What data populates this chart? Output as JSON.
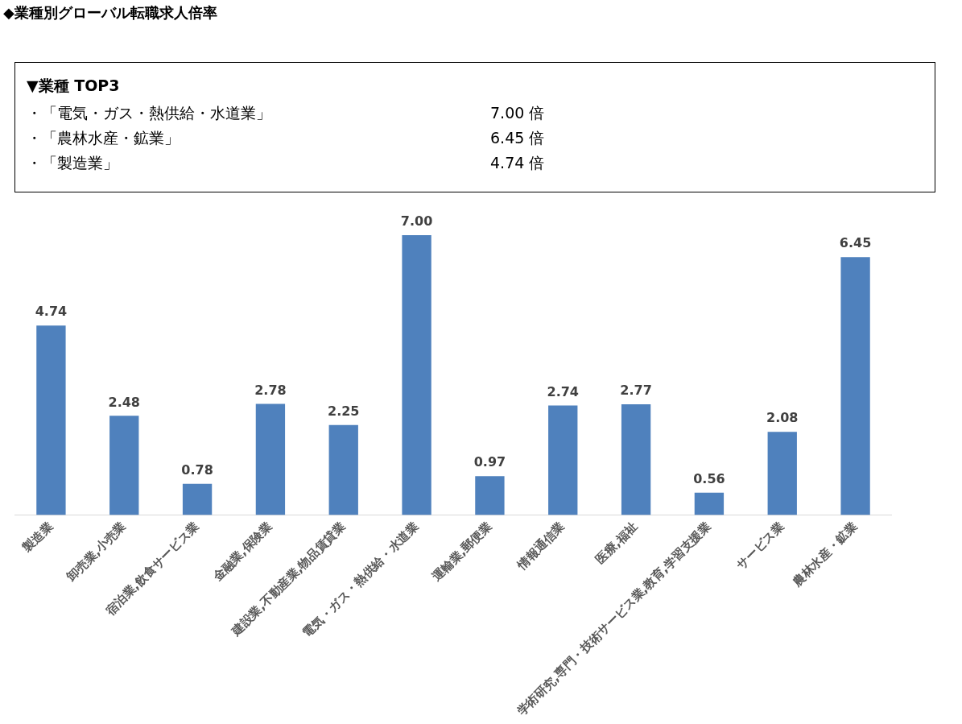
{
  "chart_data": {
    "type": "bar",
    "title": "◆業種別グローバル転職求人倍率",
    "annotations": [
      "▼業種 TOP3",
      "・「電気・ガス・熱供給・水道業」\t7.00 倍",
      "・「農林水産・鉱業」\t6.45 倍",
      "・「製造業」\t4.74 倍"
    ],
    "categories": [
      "製造業",
      "卸売業,小売業",
      "宿泊業,飲食サービス業",
      "金融業,保険業",
      "建設業,不動産業,物品賃貸業",
      "電気・ガス・熱供給・水道業",
      "運輸業,郵便業",
      "情報通信業",
      "医療,福祉",
      "学術研究,専門・技術サービス業,教育,学習支援業",
      "サービス業",
      "農林水産・鉱業"
    ],
    "values": [
      4.74,
      2.48,
      0.78,
      2.78,
      2.25,
      7.0,
      0.97,
      2.74,
      2.77,
      0.56,
      2.08,
      6.45
    ],
    "value_labels": [
      "4.74",
      "2.48",
      "0.78",
      "2.78",
      "2.25",
      "7.00",
      "0.97",
      "2.74",
      "2.77",
      "0.56",
      "2.08",
      "6.45"
    ],
    "color": "#4f81bd",
    "grid": false,
    "legend": false
  }
}
